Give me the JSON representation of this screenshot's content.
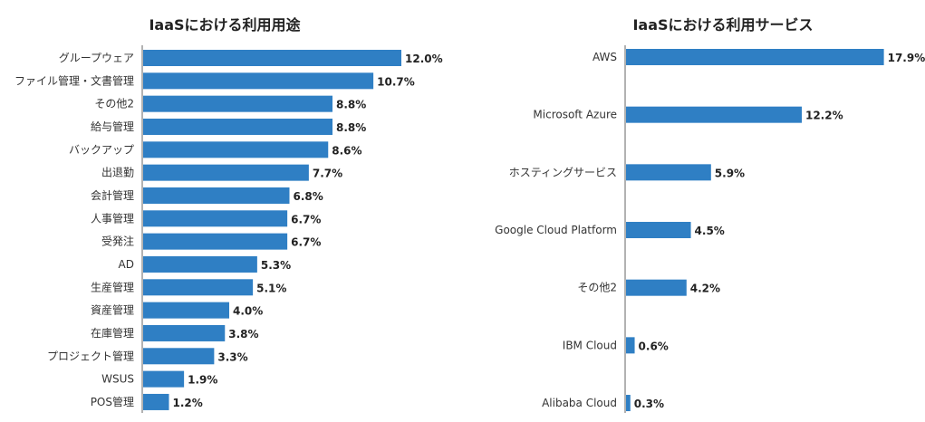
{
  "chart_data": [
    {
      "type": "bar",
      "orientation": "horizontal",
      "title": "IaaSにおける利用用途",
      "unit": "%",
      "categories": [
        "グループウェア",
        "ファイル管理・文書管理",
        "その他2",
        "給与管理",
        "バックアップ",
        "出退勤",
        "会計管理",
        "人事管理",
        "受発注",
        "AD",
        "生産管理",
        "資産管理",
        "在庫管理",
        "プロジェクト管理",
        "WSUS",
        "POS管理"
      ],
      "values": [
        12.0,
        10.7,
        8.8,
        8.8,
        8.6,
        7.7,
        6.8,
        6.7,
        6.7,
        5.3,
        5.1,
        4.0,
        3.8,
        3.3,
        1.9,
        1.2
      ],
      "value_labels": [
        "12.0%",
        "10.7%",
        "8.8%",
        "8.8%",
        "8.6%",
        "7.7%",
        "6.8%",
        "6.7%",
        "6.7%",
        "5.3%",
        "5.1%",
        "4.0%",
        "3.8%",
        "3.3%",
        "1.9%",
        "1.2%"
      ],
      "xlim": [
        0,
        13
      ],
      "grid": false,
      "color": "#2f7fc4"
    },
    {
      "type": "bar",
      "orientation": "horizontal",
      "title": "IaaSにおける利用サービス",
      "unit": "%",
      "categories": [
        "AWS",
        "Microsoft Azure",
        "ホスティングサービス",
        "Google Cloud Platform",
        "その他2",
        "IBM Cloud",
        "Alibaba Cloud"
      ],
      "values": [
        17.9,
        12.2,
        5.9,
        4.5,
        4.2,
        0.6,
        0.3
      ],
      "value_labels": [
        "17.9%",
        "12.2%",
        "5.9%",
        "4.5%",
        "4.2%",
        "0.6%",
        "0.3%"
      ],
      "xlim": [
        0,
        19
      ],
      "grid": false,
      "color": "#2f7fc4"
    }
  ]
}
